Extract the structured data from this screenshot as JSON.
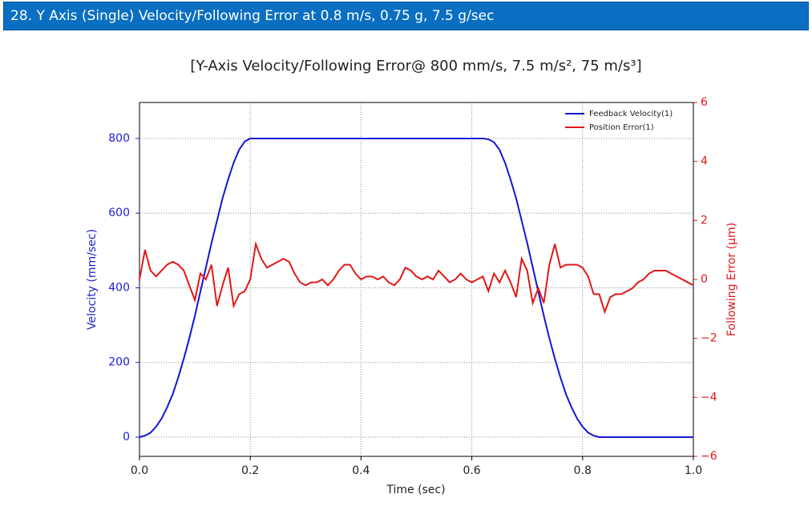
{
  "header": {
    "title": "28. Y Axis (Single) Velocity/Following Error at 0.8 m/s, 0.75 g, 7.5 g/sec"
  },
  "chart_data": {
    "type": "line",
    "title": "[Y-Axis Velocity/Following Error@ 800 mm/s, 7.5 m/s², 75 m/s³]",
    "xlabel": "Time (sec)",
    "ylabel": "Velocity (mm/sec)",
    "y2label": "Following Error (µm)",
    "xlim": [
      0,
      1
    ],
    "xticks": [
      {
        "value": 0,
        "label": "0.0"
      },
      0.2,
      0.4,
      0.6,
      0.8,
      {
        "value": 1,
        "label": "1.0"
      }
    ],
    "ylim": [
      -51.5,
      896.5
    ],
    "yticks": [
      0,
      200,
      400,
      600,
      800
    ],
    "y2lim": [
      -6,
      6
    ],
    "y2ticks": [
      {
        "value": -6,
        "label": "−6"
      },
      {
        "value": -4,
        "label": "−4"
      },
      {
        "value": -2,
        "label": "−2"
      },
      0,
      2,
      4,
      6
    ],
    "grid": true,
    "legend": "upper right",
    "ycolor": "#2020d0",
    "y2color": "#e01818",
    "x": [
      0,
      0.01,
      0.02,
      0.03,
      0.04,
      0.05,
      0.06,
      0.07,
      0.08,
      0.09,
      0.1,
      0.11,
      0.12,
      0.13,
      0.14,
      0.15,
      0.16,
      0.17,
      0.18,
      0.19,
      0.2,
      0.21,
      0.22,
      0.23,
      0.24,
      0.25,
      0.26,
      0.27,
      0.28,
      0.29,
      0.3,
      0.31,
      0.32,
      0.33,
      0.34,
      0.35,
      0.36,
      0.37,
      0.38,
      0.39,
      0.4,
      0.41,
      0.42,
      0.43,
      0.44,
      0.45,
      0.46,
      0.47,
      0.48,
      0.49,
      0.5,
      0.51,
      0.52,
      0.53,
      0.54,
      0.55,
      0.56,
      0.57,
      0.58,
      0.59,
      0.6,
      0.61,
      0.62,
      0.63,
      0.64,
      0.65,
      0.66,
      0.67,
      0.68,
      0.69,
      0.7,
      0.71,
      0.72,
      0.73,
      0.74,
      0.75,
      0.76,
      0.77,
      0.78,
      0.79,
      0.8,
      0.81,
      0.82,
      0.83,
      0.84,
      0.85,
      0.86,
      0.87,
      0.88,
      0.89,
      0.9,
      0.91,
      0.92,
      0.93,
      0.94,
      0.95,
      0.96,
      0.97,
      0.98,
      0.99,
      1
    ],
    "series": [
      {
        "name": "Feedback Velocity(1)",
        "color": "#1414d8",
        "axis": "y",
        "values": [
          0,
          4,
          12,
          28,
          50,
          80,
          115,
          160,
          210,
          265,
          325,
          390,
          455,
          520,
          580,
          640,
          690,
          735,
          770,
          792,
          800,
          800,
          800,
          800,
          800,
          800,
          800,
          800,
          800,
          800,
          800,
          800,
          800,
          800,
          800,
          800,
          800,
          800,
          800,
          800,
          800,
          800,
          800,
          800,
          800,
          800,
          800,
          800,
          800,
          800,
          800,
          800,
          800,
          800,
          800,
          800,
          800,
          800,
          800,
          800,
          800,
          800,
          800,
          798,
          790,
          770,
          735,
          690,
          640,
          580,
          520,
          455,
          390,
          325,
          265,
          210,
          160,
          115,
          80,
          50,
          28,
          12,
          4,
          0,
          0,
          0,
          0,
          0,
          0,
          0,
          0,
          0,
          0,
          0,
          0,
          0,
          0,
          0,
          0,
          0,
          0
        ]
      },
      {
        "name": "Position Error(1)",
        "color": "#e01818",
        "axis": "y2",
        "values": [
          0,
          1.0,
          0.3,
          0.1,
          0.3,
          0.5,
          0.6,
          0.5,
          0.3,
          -0.2,
          -0.7,
          0.2,
          0.0,
          0.5,
          -0.9,
          -0.2,
          0.4,
          -0.9,
          -0.5,
          -0.4,
          0.0,
          1.2,
          0.7,
          0.4,
          0.5,
          0.6,
          0.7,
          0.6,
          0.2,
          -0.1,
          -0.2,
          -0.1,
          -0.1,
          0.0,
          -0.2,
          0.0,
          0.3,
          0.5,
          0.5,
          0.2,
          0.0,
          0.1,
          0.1,
          0.0,
          0.1,
          -0.1,
          -0.2,
          0.0,
          0.4,
          0.3,
          0.1,
          0.0,
          0.1,
          0.0,
          0.3,
          0.1,
          -0.1,
          0.0,
          0.2,
          0.0,
          -0.1,
          0.0,
          0.1,
          -0.4,
          0.2,
          -0.1,
          0.3,
          -0.1,
          -0.6,
          0.7,
          0.3,
          -0.8,
          -0.3,
          -0.8,
          0.5,
          1.2,
          0.4,
          0.5,
          0.5,
          0.5,
          0.4,
          0.1,
          -0.5,
          -0.5,
          -1.1,
          -0.6,
          -0.5,
          -0.5,
          -0.4,
          -0.3,
          -0.1,
          0.0,
          0.2,
          0.3,
          0.3,
          0.3,
          0.2,
          0.1,
          0.0,
          -0.1,
          -0.2
        ]
      }
    ]
  }
}
